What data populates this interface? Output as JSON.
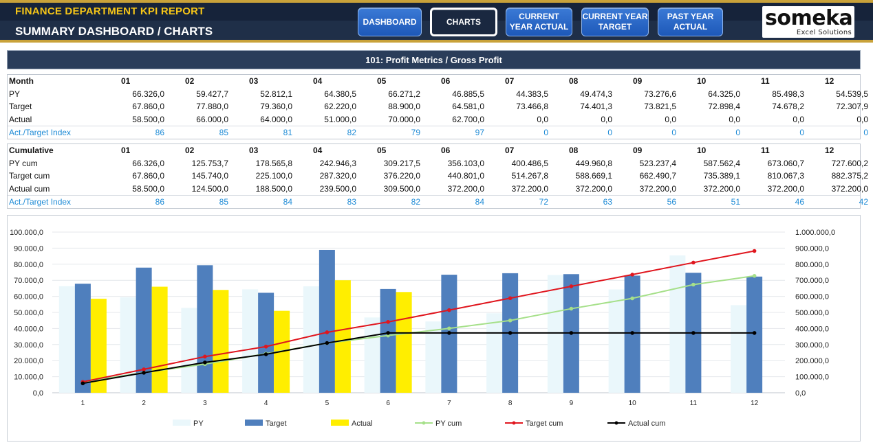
{
  "header": {
    "app_title": "FINANCE DEPARTMENT KPI REPORT",
    "page_title": "SUMMARY DASHBOARD / CHARTS",
    "nav": [
      {
        "label": "DASHBOARD",
        "active": false
      },
      {
        "label": "CHARTS",
        "active": true
      },
      {
        "label": "CURRENT YEAR ACTUAL",
        "active": false
      },
      {
        "label": "CURRENT YEAR TARGET",
        "active": false
      },
      {
        "label": "PAST YEAR ACTUAL",
        "active": false
      }
    ],
    "logo_text": "someka",
    "logo_sub": "Excel Solutions"
  },
  "section": {
    "title": "101: Profit Metrics / Gross Profit"
  },
  "monthly": {
    "header_label": "Month",
    "months": [
      "01",
      "02",
      "03",
      "04",
      "05",
      "06",
      "07",
      "08",
      "09",
      "10",
      "11",
      "12"
    ],
    "rows": [
      {
        "label": "PY",
        "values": [
          "66.326,0",
          "59.427,7",
          "52.812,1",
          "64.380,5",
          "66.271,2",
          "46.885,5",
          "44.383,5",
          "49.474,3",
          "73.276,6",
          "64.325,0",
          "85.498,3",
          "54.539,5"
        ]
      },
      {
        "label": "Target",
        "values": [
          "67.860,0",
          "77.880,0",
          "79.360,0",
          "62.220,0",
          "88.900,0",
          "64.581,0",
          "73.466,8",
          "74.401,3",
          "73.821,5",
          "72.898,4",
          "74.678,2",
          "72.307,9"
        ]
      },
      {
        "label": "Actual",
        "values": [
          "58.500,0",
          "66.000,0",
          "64.000,0",
          "51.000,0",
          "70.000,0",
          "62.700,0",
          "0,0",
          "0,0",
          "0,0",
          "0,0",
          "0,0",
          "0,0"
        ]
      }
    ],
    "index": {
      "label": "Act./Target Index",
      "values": [
        "86",
        "85",
        "81",
        "82",
        "79",
        "97",
        "0",
        "0",
        "0",
        "0",
        "0",
        "0"
      ]
    }
  },
  "cumulative": {
    "header_label": "Cumulative",
    "months": [
      "01",
      "02",
      "03",
      "04",
      "05",
      "06",
      "07",
      "08",
      "09",
      "10",
      "11",
      "12"
    ],
    "rows": [
      {
        "label": "PY cum",
        "values": [
          "66.326,0",
          "125.753,7",
          "178.565,8",
          "242.946,3",
          "309.217,5",
          "356.103,0",
          "400.486,5",
          "449.960,8",
          "523.237,4",
          "587.562,4",
          "673.060,7",
          "727.600,2"
        ]
      },
      {
        "label": "Target cum",
        "values": [
          "67.860,0",
          "145.740,0",
          "225.100,0",
          "287.320,0",
          "376.220,0",
          "440.801,0",
          "514.267,8",
          "588.669,1",
          "662.490,7",
          "735.389,1",
          "810.067,3",
          "882.375,2"
        ]
      },
      {
        "label": "Actual cum",
        "values": [
          "58.500,0",
          "124.500,0",
          "188.500,0",
          "239.500,0",
          "309.500,0",
          "372.200,0",
          "372.200,0",
          "372.200,0",
          "372.200,0",
          "372.200,0",
          "372.200,0",
          "372.200,0"
        ]
      }
    ],
    "index": {
      "label": "Act./Target Index",
      "values": [
        "86",
        "85",
        "84",
        "83",
        "82",
        "84",
        "72",
        "63",
        "56",
        "51",
        "46",
        "42"
      ]
    }
  },
  "chart_data": {
    "type": "bar",
    "categories": [
      "1",
      "2",
      "3",
      "4",
      "5",
      "6",
      "7",
      "8",
      "9",
      "10",
      "11",
      "12"
    ],
    "ylim": [
      0,
      100000
    ],
    "y2lim": [
      0,
      1000000
    ],
    "y_ticks": [
      "0,0",
      "10.000,0",
      "20.000,0",
      "30.000,0",
      "40.000,0",
      "50.000,0",
      "60.000,0",
      "70.000,0",
      "80.000,0",
      "90.000,0",
      "100.000,0"
    ],
    "y2_ticks": [
      "0,0",
      "100.000,0",
      "200.000,0",
      "300.000,0",
      "400.000,0",
      "500.000,0",
      "600.000,0",
      "700.000,0",
      "800.000,0",
      "900.000,0",
      "1.000.000,0"
    ],
    "grid": true,
    "legend_position": "bottom",
    "bar_series": [
      {
        "name": "PY",
        "color": "#eaf7fb",
        "values": [
          66326.0,
          59427.7,
          52812.1,
          64380.5,
          66271.2,
          46885.5,
          44383.5,
          49474.3,
          73276.6,
          64325.0,
          85498.3,
          54539.5
        ]
      },
      {
        "name": "Target",
        "color": "#4f7fbd",
        "values": [
          67860.0,
          77880.0,
          79360.0,
          62220.0,
          88900.0,
          64581.0,
          73466.8,
          74401.3,
          73821.5,
          72898.4,
          74678.2,
          72307.9
        ]
      },
      {
        "name": "Actual",
        "color": "#ffee00",
        "values": [
          58500.0,
          66000.0,
          64000.0,
          51000.0,
          70000.0,
          62700.0,
          0,
          0,
          0,
          0,
          0,
          0
        ]
      }
    ],
    "line_series": [
      {
        "name": "PY cum",
        "color": "#a6e08a",
        "values": [
          66326.0,
          125753.7,
          178565.8,
          242946.3,
          309217.5,
          356103.0,
          400486.5,
          449960.8,
          523237.4,
          587562.4,
          673060.7,
          727600.2
        ]
      },
      {
        "name": "Target cum",
        "color": "#e0161e",
        "values": [
          67860.0,
          145740.0,
          225100.0,
          287320.0,
          376220.0,
          440801.0,
          514267.8,
          588669.1,
          662490.7,
          735389.1,
          810067.3,
          882375.2
        ]
      },
      {
        "name": "Actual cum",
        "color": "#000000",
        "values": [
          58500.0,
          124500.0,
          188500.0,
          239500.0,
          309500.0,
          372200.0,
          372200.0,
          372200.0,
          372200.0,
          372200.0,
          372200.0,
          372200.0
        ]
      }
    ]
  }
}
